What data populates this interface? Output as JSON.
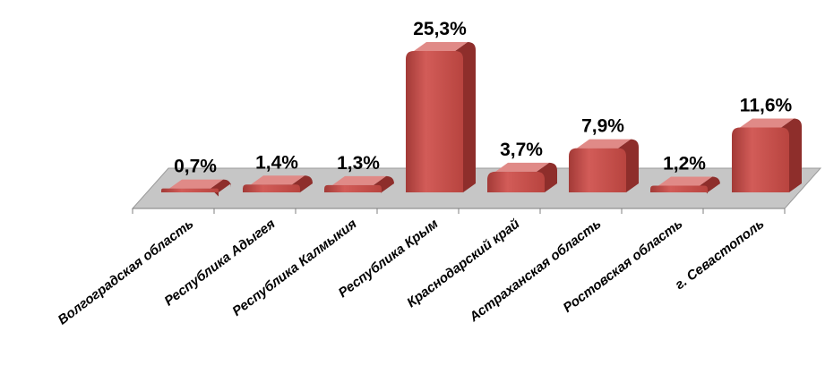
{
  "chart_data": {
    "type": "bar",
    "style": "3d",
    "categories": [
      "Волгоградская область",
      "Республика Адыгея",
      "Республика Калмыкия",
      "Республика Крым",
      "Краснодарский край",
      "Астраханская область",
      "Ростовская область",
      "г. Севастополь"
    ],
    "values": [
      0.7,
      1.4,
      1.3,
      25.3,
      3.7,
      7.9,
      1.2,
      11.6
    ],
    "data_labels": [
      "0,7%",
      "1,4%",
      "1,3%",
      "25,3%",
      "3,7%",
      "7,9%",
      "1,2%",
      "11,6%"
    ],
    "ylim": [
      0,
      25.3
    ],
    "grid": false,
    "legend": "none",
    "colors": {
      "bar_front": "#c0504d",
      "bar_side": "#8e2e2b",
      "bar_top": "#e08a87",
      "floor": "#c6c6c6",
      "floor_edge": "#9a9a9a"
    }
  }
}
